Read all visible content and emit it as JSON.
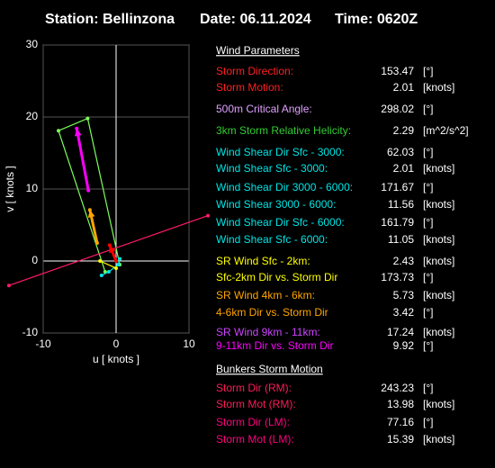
{
  "header": {
    "station": "Station: Bellinzona",
    "date": "Date: 06.11.2024",
    "time": "Time: 0620Z"
  },
  "chart_data": {
    "type": "line",
    "xlabel": "u  [ knots ]",
    "ylabel": "v  [ knots ]",
    "xlim": [
      -10,
      10
    ],
    "ylim": [
      -10,
      30
    ],
    "xticks": [
      -10,
      0,
      10
    ],
    "yticks": [
      -10,
      0,
      10,
      20,
      30
    ],
    "grid": true,
    "series": [
      {
        "color": "#7cff5a",
        "x": [
          -1.5,
          -7.9,
          -3.9,
          0.5
        ],
        "values": [
          -1.5,
          18.1,
          19.8,
          -0.5
        ]
      },
      {
        "color": "#00e5e5",
        "x": [
          -2.0,
          -1.0,
          0.3,
          0.5
        ],
        "values": [
          -2.0,
          -1.5,
          -0.5,
          0.3
        ]
      },
      {
        "color": "#ff1a6a",
        "x": [
          -14.7,
          12.6
        ],
        "values": [
          -3.4,
          6.3
        ]
      },
      {
        "color": "#ff00ff",
        "arrow": true,
        "x": [
          -3.8,
          -5.4
        ],
        "values": [
          9.8,
          18.4
        ]
      },
      {
        "color": "#ffa500",
        "arrow": true,
        "x": [
          -2.6,
          -3.6
        ],
        "values": [
          2.5,
          7.1
        ]
      },
      {
        "color": "#ffff00",
        "x": [
          -2.2,
          0.0
        ],
        "values": [
          0.0,
          -1.0
        ]
      },
      {
        "color": "#ff0000",
        "arrow": true,
        "x": [
          0.0,
          -0.9
        ],
        "values": [
          0.0,
          2.2
        ]
      }
    ]
  },
  "table": {
    "title1": "Wind Parameters",
    "title2": "Bunkers Storm Motion",
    "rows": [
      {
        "label": "Storm Direction:",
        "value": 153.47,
        "unit": "[°]",
        "color": "#ff2020"
      },
      {
        "label": "Storm Motion:",
        "value": 2.01,
        "unit": "[knots]",
        "color": "#ff2020"
      },
      {
        "label": "500m Critical Angle:",
        "value": 298.02,
        "unit": "[°]",
        "color": "#e0a0ff"
      },
      {
        "label": "3km Storm Relative Helicity:",
        "value": 2.29,
        "unit": "[m^2/s^2]",
        "color": "#33cc33"
      },
      {
        "label": "Wind Shear Dir Sfc - 3000:",
        "value": 62.03,
        "unit": "[°]",
        "color": "#00e5e5"
      },
      {
        "label": "Wind Shear Sfc - 3000:",
        "value": 2.01,
        "unit": "[knots]",
        "color": "#00e5e5"
      },
      {
        "label": "Wind Shear Dir 3000 - 6000:",
        "value": 171.67,
        "unit": "[°]",
        "color": "#00e5e5"
      },
      {
        "label": "Wind Shear 3000 - 6000:",
        "value": 11.56,
        "unit": "[knots]",
        "color": "#00e5e5"
      },
      {
        "label": "Wind Shear Dir Sfc - 6000:",
        "value": 161.79,
        "unit": "[°]",
        "color": "#00e5e5"
      },
      {
        "label": "Wind Shear Sfc - 6000:",
        "value": 11.05,
        "unit": "[knots]",
        "color": "#00e5e5"
      },
      {
        "label": "SR Wind Sfc - 2km:",
        "value": 2.43,
        "unit": "[knots]",
        "color": "#ffff00"
      },
      {
        "label": "Sfc-2km Dir vs. Storm Dir",
        "value": 173.73,
        "unit": "[°]",
        "color": "#ffff00"
      },
      {
        "label": "SR Wind 4km - 6km:",
        "value": 5.73,
        "unit": "[knots]",
        "color": "#ffa500"
      },
      {
        "label": "4-6km Dir vs. Storm Dir",
        "value": 3.42,
        "unit": "[°]",
        "color": "#ffa500"
      },
      {
        "label": "SR Wind 9km - 11km:",
        "value": 17.24,
        "unit": "[knots]",
        "color": "#cc44ff"
      },
      {
        "label": "9-11km Dir vs. Storm Dir",
        "value": 9.92,
        "unit": "[°]",
        "color": "#ff00ff"
      },
      {
        "label": "Storm Dir (RM):",
        "value": 243.23,
        "unit": "[°]",
        "color": "#ff1a5a"
      },
      {
        "label": "Storm Mot (RM):",
        "value": 13.98,
        "unit": "[knots]",
        "color": "#ff1a5a"
      },
      {
        "label": "Storm Dir (LM):",
        "value": 77.16,
        "unit": "[°]",
        "color": "#ff0080"
      },
      {
        "label": "Storm Mot (LM):",
        "value": 15.39,
        "unit": "[knots]",
        "color": "#ff0080"
      }
    ]
  }
}
